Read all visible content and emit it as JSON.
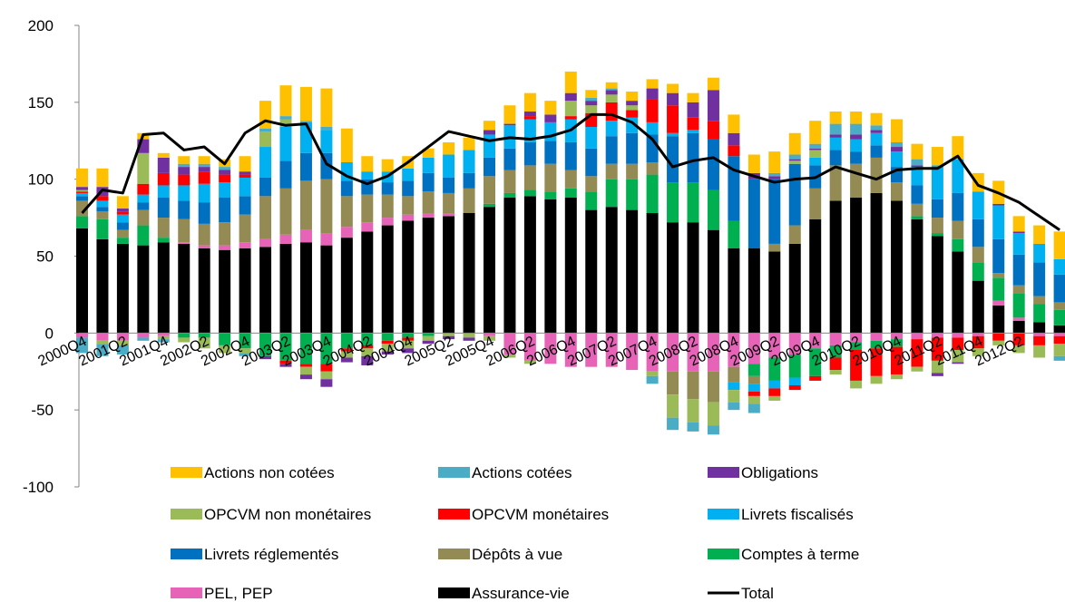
{
  "chart_data": {
    "type": "bar",
    "stacked": true,
    "categories": [
      "2000Q4",
      null,
      "2001Q2",
      null,
      "2001Q4",
      null,
      "2002Q2",
      null,
      "2002Q4",
      null,
      "2003Q2",
      null,
      "2003Q4",
      null,
      "2004Q2",
      null,
      "2004Q4",
      null,
      "2005Q2",
      null,
      "2005Q4",
      null,
      "2006Q2",
      null,
      "2006Q4",
      null,
      "2007Q2",
      null,
      "2007Q4",
      null,
      "2008Q2",
      null,
      "2008Q4",
      null,
      "2009Q2",
      null,
      "2009Q4",
      null,
      "2010Q2",
      null,
      "2010Q4",
      null,
      "2011Q2",
      null,
      "2011Q4",
      null,
      "2012Q2",
      null,
      null
    ],
    "ylim": [
      -100,
      200
    ],
    "yticks": [
      -100,
      -50,
      0,
      50,
      100,
      150,
      200
    ],
    "series": [
      {
        "name": "Actions non cotées",
        "color": "#FFC000",
        "values": [
          12,
          12,
          8,
          4,
          3,
          5,
          5,
          5,
          10,
          18,
          20,
          22,
          25,
          22,
          10,
          8,
          8,
          6,
          8,
          8,
          6,
          12,
          12,
          9,
          14,
          5,
          4,
          6,
          6,
          6,
          6,
          8,
          12,
          12,
          14,
          14,
          15,
          8,
          8,
          8,
          15,
          10,
          12,
          15,
          12,
          15,
          10,
          12,
          18
        ]
      },
      {
        "name": "Actions cotées",
        "color": "#4BACC6",
        "values": [
          -10,
          -8,
          -6,
          -2,
          -2,
          2,
          2,
          2,
          -2,
          2,
          2,
          1,
          2,
          0,
          0,
          0,
          0,
          0,
          0,
          0,
          0,
          0,
          0,
          0,
          0,
          2,
          1,
          0,
          -5,
          -8,
          -6,
          -6,
          -5,
          -6,
          2,
          3,
          3,
          7,
          7,
          3,
          3,
          4,
          0,
          0,
          0,
          0,
          0,
          0,
          -3
        ]
      },
      {
        "name": "Obligations",
        "color": "#7030A0",
        "values": [
          2,
          6,
          2,
          9,
          10,
          5,
          3,
          3,
          2,
          -2,
          -2,
          -3,
          -5,
          -3,
          -6,
          -2,
          -3,
          -2,
          -2,
          -2,
          3,
          1,
          3,
          5,
          5,
          3,
          3,
          3,
          7,
          8,
          10,
          20,
          8,
          4,
          2,
          1,
          1,
          2,
          3,
          2,
          3,
          1,
          -2,
          -1,
          0,
          1,
          1,
          0,
          0
        ]
      },
      {
        "name": "OPCVM non monétaires",
        "color": "#9BBB59",
        "values": [
          1,
          -2,
          -3,
          20,
          -2,
          -3,
          -7,
          -5,
          -3,
          10,
          5,
          -5,
          -5,
          -4,
          -5,
          -5,
          -5,
          -3,
          -2,
          -3,
          -3,
          -2,
          -2,
          0,
          10,
          5,
          5,
          3,
          -3,
          -15,
          -15,
          -15,
          -8,
          -5,
          -3,
          2,
          5,
          -3,
          -5,
          -5,
          -3,
          -3,
          -8,
          -8,
          -5,
          -3,
          -5,
          -8,
          -8
        ]
      },
      {
        "name": "OPCVM monétaires",
        "color": "#FF0000",
        "values": [
          1,
          3,
          2,
          7,
          8,
          7,
          8,
          5,
          2,
          0,
          -2,
          -2,
          -5,
          -2,
          -2,
          -2,
          -2,
          0,
          0,
          0,
          0,
          0,
          2,
          0,
          2,
          9,
          12,
          5,
          15,
          18,
          8,
          12,
          7,
          -3,
          -5,
          -3,
          -3,
          -8,
          -20,
          -18,
          -18,
          -18,
          -15,
          -8,
          -8,
          -5,
          -8,
          -6,
          -5
        ]
      },
      {
        "name": "Livrets fiscalisés",
        "color": "#00B0F0",
        "values": [
          2,
          4,
          5,
          5,
          8,
          10,
          12,
          10,
          12,
          20,
          22,
          20,
          15,
          12,
          5,
          7,
          8,
          10,
          15,
          15,
          15,
          15,
          15,
          12,
          15,
          14,
          10,
          10,
          8,
          2,
          2,
          0,
          -5,
          -5,
          -5,
          -5,
          5,
          8,
          8,
          8,
          10,
          12,
          22,
          22,
          18,
          22,
          14,
          12,
          10
        ]
      },
      {
        "name": "Livrets réglementés",
        "color": "#0070C0",
        "values": [
          3,
          3,
          5,
          5,
          13,
          12,
          14,
          16,
          12,
          12,
          18,
          18,
          17,
          10,
          10,
          8,
          10,
          12,
          10,
          10,
          12,
          14,
          15,
          15,
          18,
          18,
          18,
          20,
          18,
          30,
          32,
          33,
          42,
          45,
          42,
          40,
          15,
          10,
          8,
          8,
          10,
          12,
          12,
          18,
          18,
          22,
          20,
          22,
          18
        ]
      },
      {
        "name": "Dépôts à vue",
        "color": "#948A54",
        "values": [
          10,
          5,
          5,
          10,
          13,
          15,
          14,
          15,
          18,
          28,
          30,
          32,
          35,
          20,
          18,
          15,
          12,
          14,
          13,
          16,
          18,
          15,
          16,
          18,
          12,
          10,
          10,
          10,
          8,
          -15,
          -18,
          -20,
          -10,
          -5,
          5,
          12,
          20,
          23,
          22,
          23,
          12,
          8,
          10,
          12,
          10,
          3,
          5,
          5,
          5
        ]
      },
      {
        "name": "Comptes à terme",
        "color": "#00B050",
        "values": [
          8,
          13,
          4,
          13,
          3,
          -3,
          -3,
          -8,
          -10,
          -15,
          -18,
          -20,
          -20,
          -10,
          -8,
          -5,
          -3,
          -2,
          0,
          0,
          2,
          3,
          4,
          5,
          6,
          12,
          18,
          20,
          25,
          26,
          26,
          26,
          18,
          -8,
          -15,
          -15,
          -18,
          -8,
          -5,
          -5,
          -5,
          2,
          2,
          8,
          12,
          15,
          16,
          12,
          10
        ]
      },
      {
        "name": "PEL, PEP",
        "color": "#E763B8",
        "values": [
          -3,
          -5,
          -5,
          -3,
          -2,
          1,
          2,
          3,
          4,
          5,
          6,
          8,
          8,
          7,
          6,
          5,
          4,
          3,
          2,
          0,
          -2,
          -14,
          -18,
          -20,
          -22,
          -22,
          -22,
          -24,
          -25,
          -25,
          -25,
          -25,
          -22,
          -20,
          -16,
          -14,
          -10,
          -8,
          -6,
          -5,
          -4,
          -4,
          -3,
          -3,
          -2,
          3,
          2,
          -2,
          -2
        ]
      },
      {
        "name": "Assurance-vie",
        "color": "#000000",
        "values": [
          68,
          61,
          58,
          57,
          59,
          58,
          55,
          54,
          55,
          56,
          58,
          59,
          57,
          62,
          66,
          70,
          73,
          75,
          76,
          78,
          82,
          88,
          89,
          87,
          88,
          80,
          82,
          80,
          78,
          72,
          72,
          67,
          55,
          55,
          53,
          58,
          74,
          86,
          88,
          91,
          86,
          74,
          63,
          53,
          34,
          18,
          8,
          7,
          5
        ]
      },
      {
        "name": "Total",
        "color": "#000000",
        "type": "line",
        "values": [
          78,
          93,
          91,
          129,
          130,
          119,
          121,
          110,
          130,
          138,
          135,
          136,
          110,
          102,
          97,
          102,
          111,
          121,
          131,
          128,
          125,
          127,
          126,
          128,
          132,
          142,
          142,
          137,
          126,
          108,
          112,
          114,
          106,
          102,
          98,
          100,
          101,
          108,
          104,
          100,
          106,
          107,
          107,
          115,
          96,
          91,
          85,
          76,
          67
        ]
      }
    ]
  }
}
